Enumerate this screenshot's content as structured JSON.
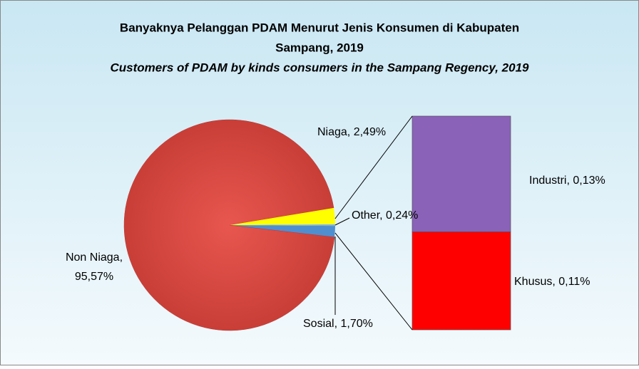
{
  "chart_data": {
    "type": "pie-of-bar",
    "title": "Banyaknya Pelanggan PDAM Menurut Jenis Konsumen di Kabupaten",
    "title_line2": "Sampang, 2019",
    "subtitle": "Customers of PDAM by kinds consumers in the Sampang Regency, 2019",
    "values": [
      95.57,
      2.49,
      1.7,
      0.24
    ],
    "value_labels": [
      [
        "Non Niaga,",
        "95,57%"
      ],
      "Niaga, 2,49%",
      "Sosial, 1,70%",
      "Other, 0,24%"
    ],
    "colors": [
      "#d8423b",
      "#ffff00",
      "#4f8fd0",
      "#7fb2e5"
    ],
    "bar": {
      "values": [
        0.13,
        0.11
      ],
      "value_labels": [
        "Industri, 0,13%",
        "Khusus, 0,11%"
      ],
      "colors": [
        "#8a62b8",
        "#ff0000"
      ]
    }
  }
}
